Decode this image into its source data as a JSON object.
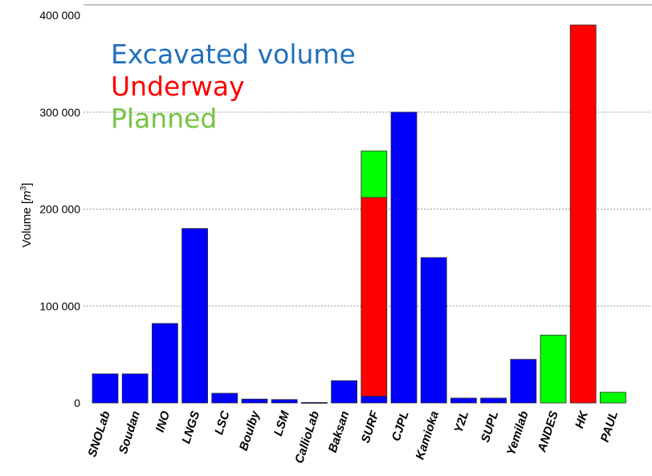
{
  "chart_data": {
    "type": "bar",
    "ylabel_prefix": "Volume [",
    "ylabel_unit": "m",
    "ylabel_exp": "3",
    "ylabel_suffix": "]",
    "ylim": [
      0,
      400000
    ],
    "y_ticks": [
      0,
      100000,
      200000,
      300000,
      400000
    ],
    "y_tick_labels": [
      "0",
      "100 000",
      "200 000",
      "300 000",
      "400 000"
    ],
    "grid": "horizontal dotted",
    "categories": [
      "SNOLab",
      "Soudan",
      "INO",
      "LNGS",
      "LSC",
      "Boulby",
      "LSM",
      "CallioLab",
      "Baksan",
      "SURF",
      "CJPL",
      "Kamioka",
      "Y2L",
      "SUPL",
      "Yemilab",
      "ANDES",
      "HK",
      "PAUL"
    ],
    "series": [
      {
        "name": "Excavated volume",
        "color": "#0000ff",
        "values": [
          30000,
          30000,
          82000,
          180000,
          10000,
          4000,
          3500,
          500,
          23000,
          7000,
          300000,
          150000,
          5000,
          5000,
          45000,
          0,
          0,
          0
        ]
      },
      {
        "name": "Underway",
        "color": "#ff0000",
        "values": [
          0,
          0,
          0,
          0,
          0,
          0,
          0,
          0,
          0,
          205000,
          0,
          0,
          0,
          0,
          0,
          0,
          390000,
          0
        ]
      },
      {
        "name": "Planned",
        "color": "#00ff00",
        "values": [
          0,
          0,
          0,
          0,
          0,
          0,
          0,
          0,
          0,
          48000,
          0,
          0,
          0,
          0,
          0,
          70000,
          0,
          11000
        ]
      }
    ],
    "legend": {
      "placement": "top-left",
      "entries": [
        {
          "label": "Excavated volume",
          "color": "#1f6fbf"
        },
        {
          "label": "Underway",
          "color": "#ff0000"
        },
        {
          "label": "Planned",
          "color": "#76c442"
        }
      ]
    }
  }
}
